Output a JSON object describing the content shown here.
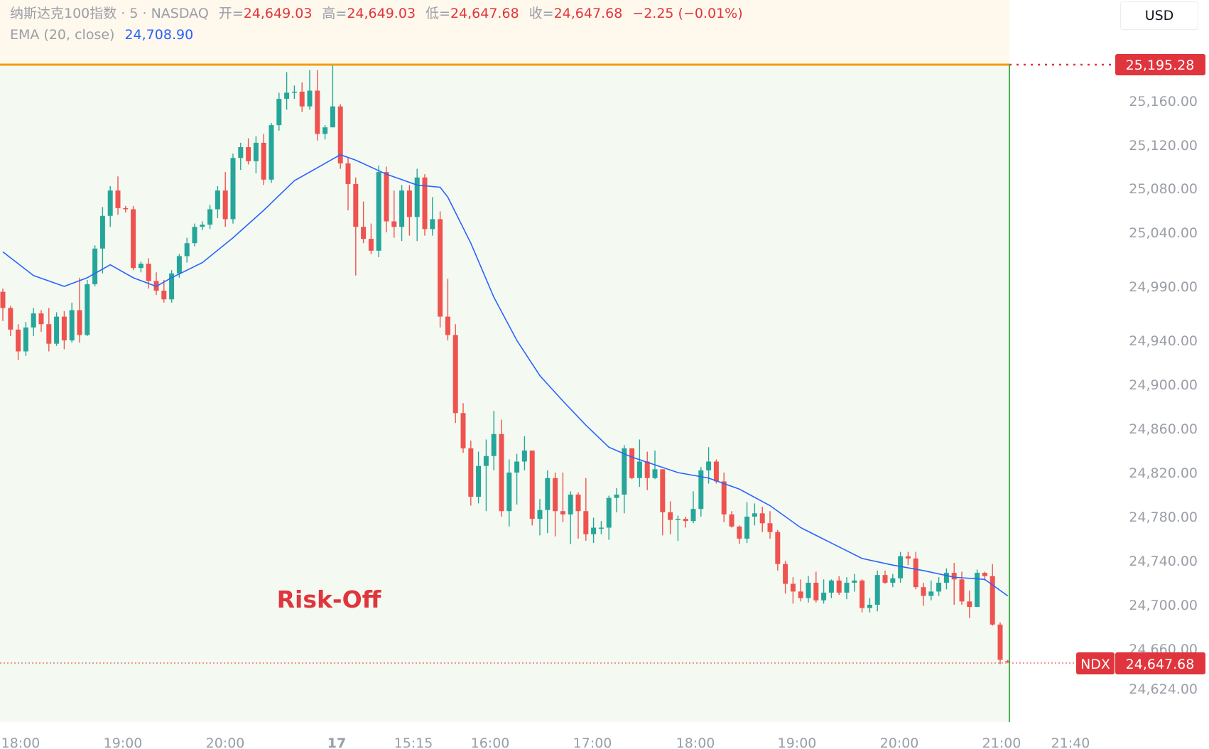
{
  "header": {
    "symbol": "纳斯达克100指数 · 5 · NASDAQ",
    "open_label": "开=",
    "open": "24,649.03",
    "high_label": "高=",
    "high": "24,649.03",
    "low_label": "低=",
    "low": "24,647.68",
    "close_label": "收=",
    "close": "24,647.68",
    "change": "−2.25 (−0.01%)",
    "ema_label": "EMA (20, close)",
    "ema_value": "24,708.90"
  },
  "currency_button": "USD",
  "price_axis_ticks": [
    "25,160.00",
    "25,120.00",
    "25,080.00",
    "25,040.00",
    "24,990.00",
    "24,940.00",
    "24,900.00",
    "24,860.00",
    "24,820.00",
    "24,780.00",
    "24,740.00",
    "24,700.00",
    "24,660.00",
    "24,624.00"
  ],
  "time_axis_ticks": [
    "18:00",
    "19:00",
    "20:00",
    "17",
    "15:15",
    "16:00",
    "17:00",
    "18:00",
    "19:00",
    "20:00",
    "21:00",
    "21:40"
  ],
  "annotation": "Risk-Off",
  "top_level_tag": "25,195.28",
  "ticker_tag": "NDX",
  "last_price_tag": "24,647.68",
  "colors": {
    "up": "#26a69a",
    "down": "#ef5350",
    "ema": "#2962ff",
    "orange_line": "#f39c12",
    "green_line": "#4caf50",
    "zone_top": "#fff8ec",
    "zone_main": "#f4faf1",
    "annotation": "#e0353d"
  },
  "chart_data": {
    "type": "candlestick",
    "title": "纳斯达克100指数 · 5 · NASDAQ",
    "interval": "5",
    "exchange": "NASDAQ",
    "y_axis_ticks": [
      25160,
      25120,
      25080,
      25040,
      24990,
      24940,
      24900,
      24860,
      24820,
      24780,
      24740,
      24700,
      24660,
      24624
    ],
    "x_axis_ticks": [
      "18:00",
      "19:00",
      "20:00",
      "17",
      "15:15",
      "16:00",
      "17:00",
      "18:00",
      "19:00",
      "20:00",
      "21:00",
      "21:40"
    ],
    "candles_ohlc": [
      [
        24985,
        24988,
        24958,
        24970
      ],
      [
        24970,
        24972,
        24944,
        24950
      ],
      [
        24950,
        24955,
        24922,
        24930
      ],
      [
        24930,
        24957,
        24926,
        24952
      ],
      [
        24952,
        24970,
        24944,
        24965
      ],
      [
        24965,
        24968,
        24948,
        24955
      ],
      [
        24955,
        24970,
        24930,
        24937
      ],
      [
        24937,
        24966,
        24935,
        24962
      ],
      [
        24962,
        24967,
        24932,
        24940
      ],
      [
        24940,
        24975,
        24938,
        24968
      ],
      [
        24968,
        24998,
        24938,
        24945
      ],
      [
        24945,
        24996,
        24944,
        24992
      ],
      [
        24992,
        25028,
        24990,
        25025
      ],
      [
        25025,
        25063,
        25002,
        25055
      ],
      [
        25055,
        25082,
        25045,
        25078
      ],
      [
        25078,
        25091,
        25056,
        25062
      ],
      [
        25062,
        25064,
        25058,
        25061
      ],
      [
        25061,
        25064,
        25005,
        25007
      ],
      [
        25007,
        25013,
        25003,
        25011
      ],
      [
        25011,
        25016,
        24988,
        24995
      ],
      [
        24995,
        25003,
        24982,
        24986
      ],
      [
        24986,
        24996,
        24975,
        24978
      ],
      [
        24978,
        25005,
        24975,
        25002
      ],
      [
        25002,
        25020,
        24998,
        25018
      ],
      [
        25018,
        25035,
        25012,
        25030
      ],
      [
        25030,
        25048,
        25027,
        25045
      ],
      [
        25045,
        25050,
        25042,
        25047
      ],
      [
        25047,
        25065,
        25043,
        25061
      ],
      [
        25061,
        25082,
        25053,
        25078
      ],
      [
        25078,
        25095,
        25045,
        25052
      ],
      [
        25052,
        25112,
        25048,
        25108
      ],
      [
        25108,
        25122,
        25097,
        25118
      ],
      [
        25118,
        25126,
        25102,
        25105
      ],
      [
        25105,
        25128,
        25094,
        25122
      ],
      [
        25122,
        25130,
        25083,
        25088
      ],
      [
        25088,
        25140,
        25085,
        25138
      ],
      [
        25138,
        25168,
        25133,
        25162
      ],
      [
        25162,
        25188,
        25152,
        25168
      ],
      [
        25168,
        25175,
        25162,
        25169
      ],
      [
        25169,
        25178,
        25150,
        25155
      ],
      [
        25155,
        25190,
        25152,
        25170
      ],
      [
        25170,
        25190,
        25124,
        25130
      ],
      [
        25130,
        25138,
        25125,
        25136
      ],
      [
        25136,
        25195,
        25148,
        25155
      ],
      [
        25155,
        25157,
        25098,
        25103
      ],
      [
        25103,
        25108,
        25060,
        25084
      ],
      [
        25084,
        25090,
        25000,
        25045
      ],
      [
        25045,
        25068,
        25030,
        25034
      ],
      [
        25034,
        25048,
        25020,
        25023
      ],
      [
        25023,
        25101,
        25017,
        25095
      ],
      [
        25095,
        25100,
        25040,
        25050
      ],
      [
        25050,
        25078,
        25035,
        25045
      ],
      [
        25045,
        25083,
        25032,
        25078
      ],
      [
        25078,
        25083,
        25037,
        25054
      ],
      [
        25054,
        25098,
        25032,
        25090
      ],
      [
        25090,
        25093,
        25037,
        25043
      ],
      [
        25043,
        25072,
        25037,
        25052
      ],
      [
        25052,
        25059,
        24952,
        24962
      ],
      [
        24962,
        24997,
        24940,
        24945
      ],
      [
        24945,
        24955,
        24865,
        24874
      ],
      [
        24874,
        24883,
        24838,
        24842
      ],
      [
        24842,
        24849,
        24790,
        24798
      ],
      [
        24798,
        24839,
        24792,
        24826
      ],
      [
        24826,
        24850,
        24785,
        24835
      ],
      [
        24835,
        24876,
        24822,
        24855
      ],
      [
        24855,
        24868,
        24780,
        24785
      ],
      [
        24785,
        24832,
        24771,
        24820
      ],
      [
        24820,
        24837,
        24791,
        24830
      ],
      [
        24830,
        24853,
        24822,
        24840
      ],
      [
        24840,
        24840,
        24772,
        24778
      ],
      [
        24778,
        24796,
        24763,
        24786
      ],
      [
        24786,
        24822,
        24765,
        24815
      ],
      [
        24815,
        24820,
        24762,
        24785
      ],
      [
        24785,
        24820,
        24775,
        24782
      ],
      [
        24782,
        24803,
        24755,
        24800
      ],
      [
        24800,
        24802,
        24760,
        24785
      ],
      [
        24785,
        24815,
        24758,
        24764
      ],
      [
        24764,
        24779,
        24756,
        24770
      ],
      [
        24770,
        24776,
        24764,
        24770
      ],
      [
        24770,
        24799,
        24759,
        24797
      ],
      [
        24797,
        24806,
        24784,
        24800
      ],
      [
        24800,
        24845,
        24783,
        24842
      ],
      [
        24842,
        24842,
        24814,
        24815
      ],
      [
        24815,
        24850,
        24807,
        24830
      ],
      [
        24830,
        24839,
        24804,
        24815
      ],
      [
        24815,
        24840,
        24814,
        24823
      ],
      [
        24823,
        24799,
        24763,
        24784
      ],
      [
        24784,
        24794,
        24764,
        24777
      ],
      [
        24777,
        24781,
        24758,
        24778
      ],
      [
        24778,
        24780,
        24770,
        24776
      ],
      [
        24776,
        24803,
        24774,
        24787
      ],
      [
        24787,
        24825,
        24780,
        24822
      ],
      [
        24822,
        24843,
        24810,
        24830
      ],
      [
        24830,
        24832,
        24810,
        24812
      ],
      [
        24812,
        24820,
        24775,
        24782
      ],
      [
        24782,
        24785,
        24770,
        24771
      ],
      [
        24771,
        24772,
        24755,
        24760
      ],
      [
        24760,
        24793,
        24756,
        24780
      ],
      [
        24780,
        24792,
        24772,
        24783
      ],
      [
        24783,
        24789,
        24766,
        24774
      ],
      [
        24774,
        24785,
        24760,
        24766
      ],
      [
        24766,
        24768,
        24731,
        24737
      ],
      [
        24737,
        24740,
        24710,
        24719
      ],
      [
        24719,
        24725,
        24701,
        24712
      ],
      [
        24712,
        24723,
        24703,
        24706
      ],
      [
        24706,
        24726,
        24702,
        24720
      ],
      [
        24720,
        24730,
        24702,
        24704
      ],
      [
        24704,
        24723,
        24701,
        24711
      ],
      [
        24711,
        24723,
        24706,
        24722
      ],
      [
        24722,
        24726,
        24709,
        24711
      ],
      [
        24711,
        24725,
        24705,
        24720
      ],
      [
        24720,
        24728,
        24712,
        24722
      ],
      [
        24722,
        24723,
        24693,
        24697
      ],
      [
        24697,
        24706,
        24693,
        24700
      ],
      [
        24700,
        24731,
        24694,
        24727
      ],
      [
        24727,
        24731,
        24719,
        24720
      ],
      [
        24720,
        24728,
        24716,
        24724
      ],
      [
        24724,
        24748,
        24720,
        24744
      ],
      [
        24744,
        24748,
        24736,
        24742
      ],
      [
        24742,
        24748,
        24714,
        24716
      ],
      [
        24716,
        24720,
        24699,
        24708
      ],
      [
        24708,
        24722,
        24704,
        24712
      ],
      [
        24712,
        24725,
        24708,
        24720
      ],
      [
        24720,
        24733,
        24714,
        24729
      ],
      [
        24729,
        24738,
        24700,
        24723
      ],
      [
        24723,
        24730,
        24700,
        24703
      ],
      [
        24703,
        24713,
        24688,
        24698
      ],
      [
        24698,
        24732,
        24698,
        24729
      ],
      [
        24729,
        24730,
        24722,
        24726
      ],
      [
        24726,
        24737,
        24681,
        24682
      ],
      [
        24682,
        24684,
        24646,
        24650
      ],
      [
        24649,
        24650,
        24647,
        24648
      ]
    ],
    "ema": {
      "name": "EMA (20, close)",
      "points": [
        [
          0,
          25022
        ],
        [
          4,
          25000
        ],
        [
          8,
          24990
        ],
        [
          11,
          24998
        ],
        [
          14,
          25010
        ],
        [
          17,
          24998
        ],
        [
          20,
          24990
        ],
        [
          22,
          24998
        ],
        [
          26,
          25012
        ],
        [
          30,
          25035
        ],
        [
          34,
          25060
        ],
        [
          38,
          25087
        ],
        [
          42,
          25103
        ],
        [
          44,
          25111
        ],
        [
          46,
          25106
        ],
        [
          50,
          25093
        ],
        [
          54,
          25083
        ],
        [
          57,
          25081
        ],
        [
          58,
          25072
        ],
        [
          61,
          25030
        ],
        [
          64,
          24980
        ],
        [
          67,
          24940
        ],
        [
          70,
          24908
        ],
        [
          73,
          24885
        ],
        [
          76,
          24863
        ],
        [
          79,
          24843
        ],
        [
          82,
          24834
        ],
        [
          85,
          24827
        ],
        [
          88,
          24820
        ],
        [
          92,
          24815
        ],
        [
          96,
          24805
        ],
        [
          100,
          24790
        ],
        [
          104,
          24770
        ],
        [
          108,
          24756
        ],
        [
          112,
          24742
        ],
        [
          116,
          24736
        ],
        [
          120,
          24731
        ],
        [
          124,
          24725
        ],
        [
          128,
          24723
        ],
        [
          131,
          24708
        ]
      ]
    },
    "horizontal_levels": [
      25195.28,
      24647.68
    ],
    "annotations": [
      "Risk-Off"
    ]
  }
}
